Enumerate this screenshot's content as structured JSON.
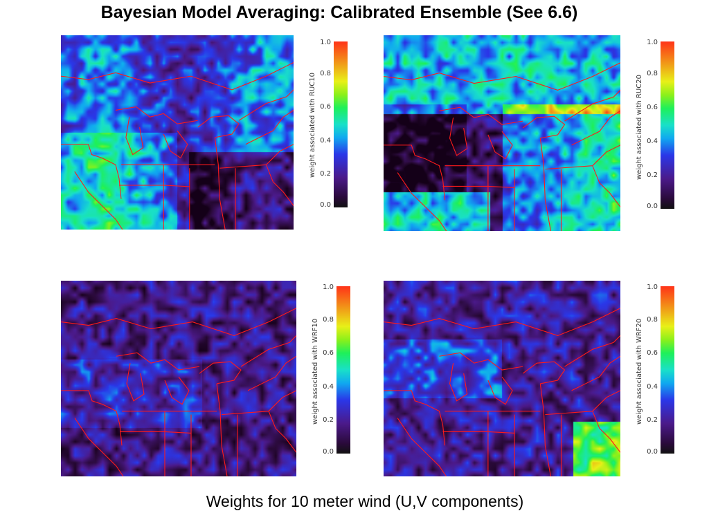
{
  "title": "Bayesian Model Averaging: Calibrated Ensemble (See 6.6)",
  "caption": "Weights for 10 meter wind (U,V components)",
  "colorbar": {
    "ticks": [
      "1.0",
      "0.8",
      "0.6",
      "0.4",
      "0.2",
      "0.0"
    ],
    "range": [
      0.0,
      1.0
    ]
  },
  "panels": [
    {
      "label": "weight associated with RUC10",
      "model": "RUC10"
    },
    {
      "label": "weight associated with RUC20",
      "model": "RUC20"
    },
    {
      "label": "weight associated with WRF10",
      "model": "WRF10"
    },
    {
      "label": "weight associated with WRF20",
      "model": "WRF20"
    }
  ],
  "colors": {
    "border_lines": "#ff1a1a",
    "background": "#ffffff"
  }
}
